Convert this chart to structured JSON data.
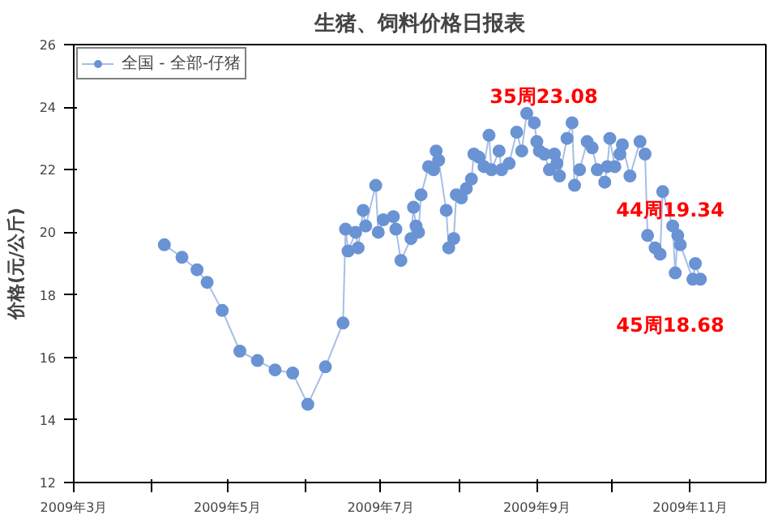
{
  "chart_data": {
    "type": "line",
    "title": "生猪、饲料价格日报表",
    "ylabel": "价格(元/公斤)",
    "x": [
      "2009-04-06",
      "2009-04-13",
      "2009-04-19",
      "2009-04-23",
      "2009-04-29",
      "2009-05-06",
      "2009-05-13",
      "2009-05-20",
      "2009-05-27",
      "2009-06-02",
      "2009-06-09",
      "2009-06-16",
      "2009-06-17",
      "2009-06-18",
      "2009-06-21",
      "2009-06-22",
      "2009-06-24",
      "2009-06-25",
      "2009-06-29",
      "2009-06-30",
      "2009-07-02",
      "2009-07-06",
      "2009-07-07",
      "2009-07-09",
      "2009-07-13",
      "2009-07-14",
      "2009-07-15",
      "2009-07-16",
      "2009-07-17",
      "2009-07-20",
      "2009-07-22",
      "2009-07-23",
      "2009-07-24",
      "2009-07-27",
      "2009-07-28",
      "2009-07-30",
      "2009-07-31",
      "2009-08-02",
      "2009-08-04",
      "2009-08-06",
      "2009-08-07",
      "2009-08-09",
      "2009-08-11",
      "2009-08-13",
      "2009-08-14",
      "2009-08-17",
      "2009-08-18",
      "2009-08-21",
      "2009-08-24",
      "2009-08-26",
      "2009-08-28",
      "2009-08-31",
      "2009-09-01",
      "2009-09-02",
      "2009-09-04",
      "2009-09-06",
      "2009-09-08",
      "2009-09-09",
      "2009-09-10",
      "2009-09-13",
      "2009-09-15",
      "2009-09-16",
      "2009-09-18",
      "2009-09-21",
      "2009-09-23",
      "2009-09-25",
      "2009-09-28",
      "2009-09-29",
      "2009-09-30",
      "2009-10-02",
      "2009-10-04",
      "2009-10-05",
      "2009-10-08",
      "2009-10-12",
      "2009-10-14",
      "2009-10-15",
      "2009-10-18",
      "2009-10-20",
      "2009-10-21",
      "2009-10-25",
      "2009-10-26",
      "2009-10-27",
      "2009-10-28",
      "2009-11-02",
      "2009-11-03",
      "2009-11-05"
    ],
    "series": [
      {
        "name": "全国 - 全部-仔猪",
        "color": "#6a93d4",
        "values": [
          19.6,
          19.2,
          18.8,
          18.4,
          17.5,
          16.2,
          15.9,
          15.6,
          15.5,
          14.5,
          15.7,
          17.1,
          20.1,
          19.4,
          20.0,
          19.5,
          20.7,
          20.2,
          21.5,
          20.0,
          20.4,
          20.5,
          20.1,
          19.1,
          19.8,
          20.8,
          20.2,
          20.0,
          21.2,
          22.1,
          22.0,
          22.6,
          22.3,
          20.7,
          19.5,
          19.8,
          21.2,
          21.1,
          21.4,
          21.7,
          22.5,
          22.4,
          22.1,
          23.1,
          22.0,
          22.6,
          22.0,
          22.2,
          23.2,
          22.6,
          23.8,
          23.5,
          22.9,
          22.6,
          22.5,
          22.0,
          22.5,
          22.2,
          21.8,
          23.0,
          23.5,
          21.5,
          22.0,
          22.9,
          22.7,
          22.0,
          21.6,
          22.1,
          23.0,
          22.1,
          22.5,
          22.8,
          21.8,
          22.9,
          22.5,
          19.9,
          19.5,
          19.3,
          21.3,
          20.2,
          18.7,
          19.9,
          19.6,
          18.5,
          19.0,
          18.5
        ]
      }
    ],
    "xlim": [
      "2009-03-01",
      "2009-12-01"
    ],
    "xticks": [
      {
        "value": "2009-03-01",
        "label": "2009年3月"
      },
      {
        "value": "2009-04-01",
        "label": null
      },
      {
        "value": "2009-05-01",
        "label": "2009年5月"
      },
      {
        "value": "2009-06-01",
        "label": null
      },
      {
        "value": "2009-07-01",
        "label": "2009年7月"
      },
      {
        "value": "2009-08-01",
        "label": null
      },
      {
        "value": "2009-09-01",
        "label": "2009年9月"
      },
      {
        "value": "2009-10-01",
        "label": null
      },
      {
        "value": "2009-11-01",
        "label": "2009年11月"
      }
    ],
    "ylim": [
      12,
      26
    ],
    "yticks": [
      12,
      14,
      16,
      18,
      20,
      22,
      24,
      26
    ],
    "annotations": [
      "35周23.08",
      "44周19.34",
      "45周18.68"
    ],
    "legend": "top left",
    "marker": "circle",
    "line_style": "solid",
    "grid": false
  }
}
